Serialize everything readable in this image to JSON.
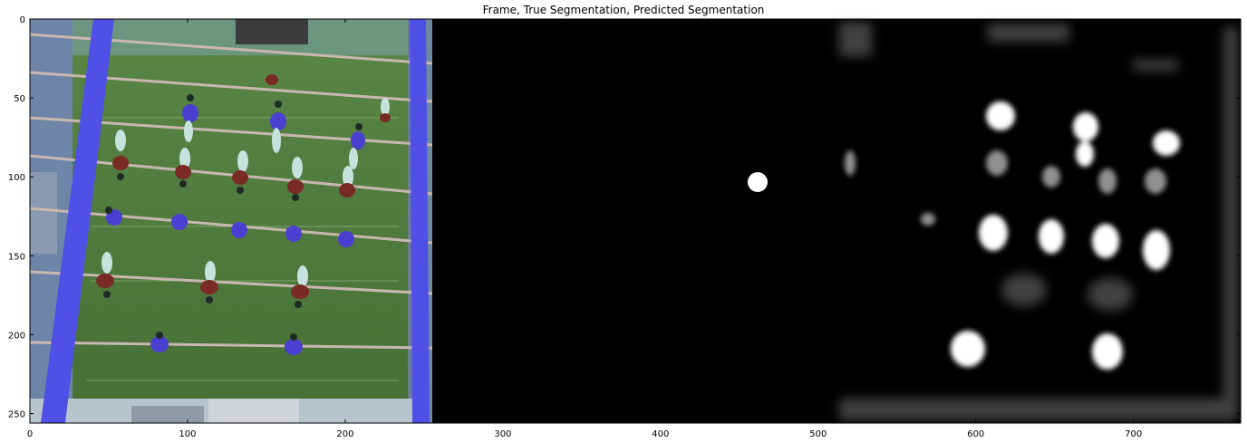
{
  "figure": {
    "title": "Frame, True Segmentation, Predicted Segmentation",
    "panels": [
      "frame",
      "true-segmentation",
      "predicted-segmentation"
    ],
    "x_ticks": [
      "0",
      "100",
      "200",
      "300",
      "400",
      "500",
      "600",
      "700"
    ],
    "y_ticks": [
      "0",
      "50",
      "100",
      "150",
      "200",
      "250"
    ],
    "colors": {
      "table_green": "#4f7d3c",
      "rail_blue": "#5656e8",
      "player_blue": "#4a3fd0",
      "player_red": "#7a2a25",
      "seg_white": "#ffffff",
      "background_black": "#000000"
    },
    "ball_true": {
      "x": 462,
      "y": 102
    }
  }
}
